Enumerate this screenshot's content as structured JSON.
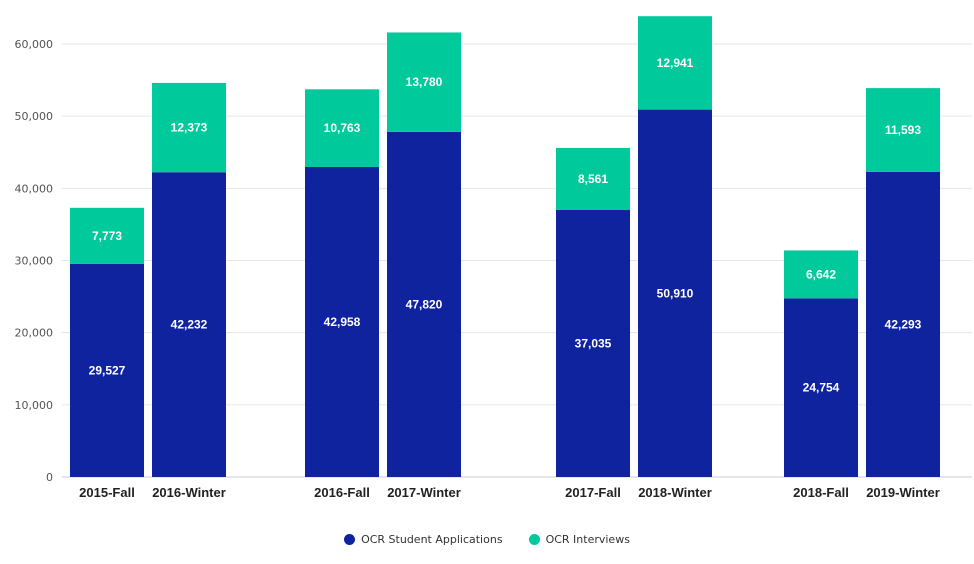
{
  "chart_data": {
    "type": "bar",
    "stacked": true,
    "categories": [
      "2015-Fall",
      "2016-Winter",
      "2016-Fall",
      "2017-Winter",
      "2017-Fall",
      "2018-Winter",
      "2018-Fall",
      "2019-Winter"
    ],
    "series": [
      {
        "name": "OCR Student Applications",
        "color": "#10239e",
        "values": [
          29527,
          42232,
          42958,
          47820,
          37035,
          50910,
          24754,
          42293
        ],
        "labels": [
          "29,527",
          "42,232",
          "42,958",
          "47,820",
          "37,035",
          "50,910",
          "24,754",
          "42,293"
        ]
      },
      {
        "name": "OCR Interviews",
        "color": "#00c99b",
        "values": [
          7773,
          12373,
          10763,
          13780,
          8561,
          12941,
          6642,
          11593
        ],
        "labels": [
          "7,773",
          "12,373",
          "10,763",
          "13,780",
          "8,561",
          "12,941",
          "6,642",
          "11,593"
        ]
      }
    ],
    "ylim": [
      0,
      60000
    ],
    "yticks": [
      0,
      10000,
      20000,
      30000,
      40000,
      50000,
      60000
    ],
    "ytick_labels": [
      "0",
      "10,000",
      "20,000",
      "30,000",
      "40,000",
      "50,000",
      "60,000"
    ],
    "grid": true,
    "legend_position": "bottom-center",
    "title": "",
    "xlabel": "",
    "ylabel": ""
  }
}
